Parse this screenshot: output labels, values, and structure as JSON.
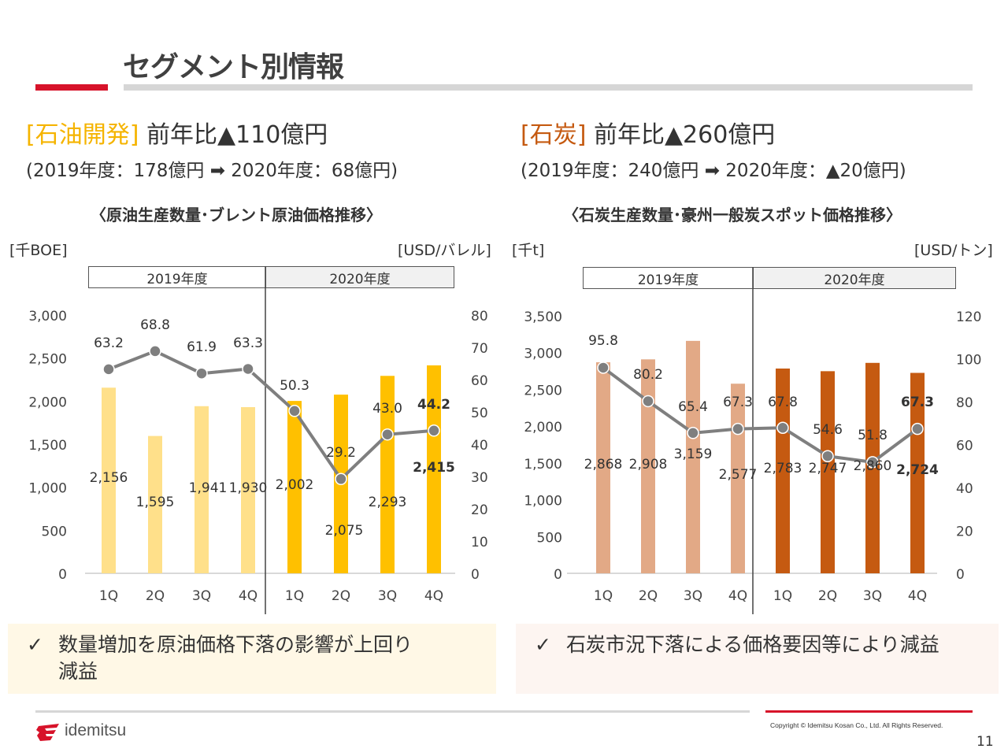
{
  "page": {
    "title": "セグメント別情報",
    "page_number": "11",
    "copyright": "Copyright © Idemitsu Kosan Co., Ltd.  All Rights Reserved.",
    "logo_text": "idemitsu",
    "colors": {
      "accent_red": "#d7132a",
      "oil_label": "#f5b400",
      "coal_label": "#c55a11"
    }
  },
  "oil": {
    "segment_label": "[石油開発]",
    "headline": " 前年比▲110億円",
    "sub": "(2019年度：178億円 ➡ 2020年度：68億円)",
    "chart_title": "〈原油生産数量･ブレント原油価格推移〉",
    "left_unit": "[千BOE]",
    "right_unit": "[USD/バレル]",
    "fy_labels": [
      "2019年度",
      "2020年度"
    ],
    "note_check": "✓",
    "note_text": [
      "数量増加を原油価格下落の影響が上回り",
      "減益"
    ]
  },
  "coal": {
    "segment_label": "[石炭]",
    "headline": " 前年比▲260億円",
    "sub": "(2019年度：240億円 ➡ 2020年度：▲20億円)",
    "chart_title": "〈石炭生産数量･豪州一般炭スポット価格推移〉",
    "left_unit": "[千t]",
    "right_unit": "[USD/トン]",
    "fy_labels": [
      "2019年度",
      "2020年度"
    ],
    "note_check": "✓",
    "note_text": [
      "石炭市況下落による価格要因等により減益"
    ]
  },
  "chart_data": [
    {
      "type": "bar",
      "title": "〈原油生産数量･ブレント原油価格推移〉",
      "categories": [
        "1Q",
        "2Q",
        "3Q",
        "4Q",
        "1Q",
        "2Q",
        "3Q",
        "4Q"
      ],
      "groups": [
        "2019年度",
        "2019年度",
        "2019年度",
        "2019年度",
        "2020年度",
        "2020年度",
        "2020年度",
        "2020年度"
      ],
      "ylabel": "[千BOE]",
      "y2label": "[USD/バレル]",
      "ylim": [
        0,
        3000
      ],
      "yticks": [
        0,
        500,
        1000,
        1500,
        2000,
        2500,
        3000
      ],
      "ytick_labels": [
        "0",
        "500",
        "1,000",
        "1,500",
        "2,000",
        "2,500",
        "3,000"
      ],
      "y2lim": [
        0,
        80
      ],
      "y2ticks": [
        0,
        10,
        20,
        30,
        40,
        50,
        60,
        70,
        80
      ],
      "series": [
        {
          "name": "原油生産数量",
          "kind": "bar",
          "axis": "left",
          "values": [
            2156,
            1595,
            1941,
            1930,
            2002,
            2075,
            2293,
            2415
          ],
          "labels": [
            "2,156",
            "1,595",
            "1,941",
            "1,930",
            "2,002",
            "2,075",
            "2,293",
            "2,415"
          ],
          "colors": [
            "#ffe08a",
            "#ffe08a",
            "#ffe08a",
            "#ffe08a",
            "#ffc000",
            "#ffc000",
            "#ffc000",
            "#ffc000"
          ]
        },
        {
          "name": "ブレント原油価格",
          "kind": "line",
          "axis": "right",
          "values": [
            63.2,
            68.8,
            61.9,
            63.3,
            50.3,
            29.2,
            43.0,
            44.2
          ],
          "labels": [
            "63.2",
            "68.8",
            "61.9",
            "63.3",
            "50.3",
            "29.2",
            "43.0",
            "44.2"
          ],
          "color": "#7f7f7f"
        }
      ],
      "bold_last": true,
      "grid": false
    },
    {
      "type": "bar",
      "title": "〈石炭生産数量･豪州一般炭スポット価格推移〉",
      "categories": [
        "1Q",
        "2Q",
        "3Q",
        "4Q",
        "1Q",
        "2Q",
        "3Q",
        "4Q"
      ],
      "groups": [
        "2019年度",
        "2019年度",
        "2019年度",
        "2019年度",
        "2020年度",
        "2020年度",
        "2020年度",
        "2020年度"
      ],
      "ylabel": "[千t]",
      "y2label": "[USD/トン]",
      "ylim": [
        0,
        3500
      ],
      "yticks": [
        0,
        500,
        1000,
        1500,
        2000,
        2500,
        3000,
        3500
      ],
      "ytick_labels": [
        "0",
        "500",
        "1,000",
        "1,500",
        "2,000",
        "2,500",
        "3,000",
        "3,500"
      ],
      "y2lim": [
        0,
        120
      ],
      "y2ticks": [
        0,
        20,
        40,
        60,
        80,
        100,
        120
      ],
      "series": [
        {
          "name": "石炭生産数量",
          "kind": "bar",
          "axis": "left",
          "values": [
            2868,
            2908,
            3159,
            2577,
            2783,
            2747,
            2860,
            2724
          ],
          "labels": [
            "2,868",
            "2,908",
            "3,159",
            "2,577",
            "2,783",
            "2,747",
            "2,860",
            "2,724"
          ],
          "colors": [
            "#e2a986",
            "#e2a986",
            "#e2a986",
            "#e2a986",
            "#c55a11",
            "#c55a11",
            "#c55a11",
            "#c55a11"
          ]
        },
        {
          "name": "豪州一般炭スポット価格",
          "kind": "line",
          "axis": "right",
          "values": [
            95.8,
            80.2,
            65.4,
            67.3,
            67.8,
            54.6,
            51.8,
            67.3
          ],
          "labels": [
            "95.8",
            "80.2",
            "65.4",
            "67.3",
            "67.8",
            "54.6",
            "51.8",
            "67.3"
          ],
          "color": "#7f7f7f"
        }
      ],
      "bold_last": true,
      "grid": false
    }
  ]
}
